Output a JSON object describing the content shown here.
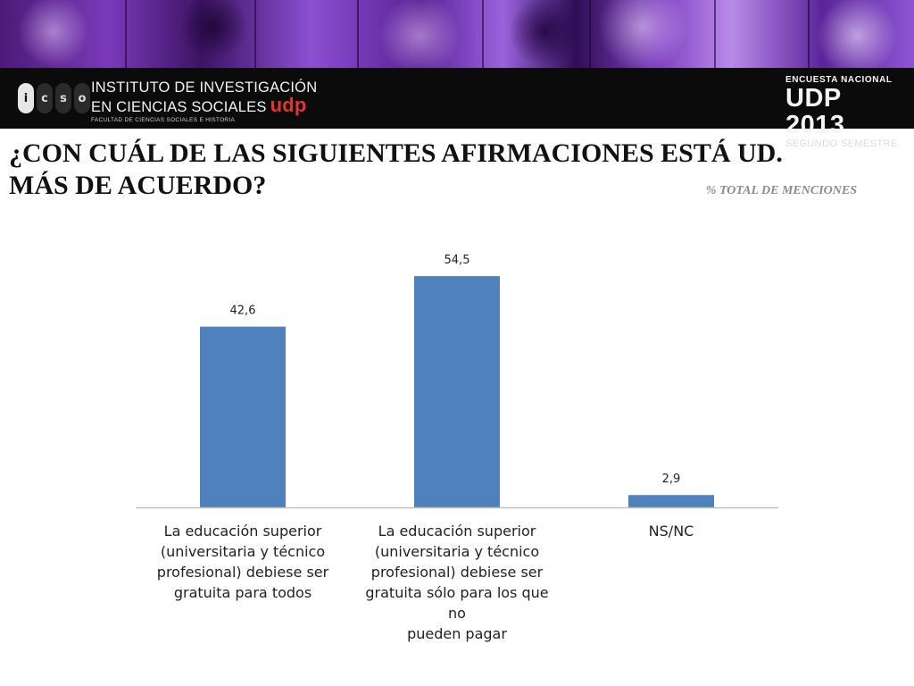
{
  "banner_icon": "photo-collage-banner",
  "logo": {
    "letters": [
      "i",
      "c",
      "s",
      "o"
    ],
    "name_line1": "INSTITUTO DE INVESTIGACIÓN",
    "name_line2": "EN CIENCIAS SOCIALES",
    "name_udp": "udp",
    "faculty": "FACULTAD DE CIENCIAS SOCIALES E HISTORIA"
  },
  "survey": {
    "top": "ENCUESTA NACIONAL",
    "main": "UDP 2013",
    "sub": "SEGUNDO SEMESTRE"
  },
  "title_line1": "¿CON CUÁL DE LAS SIGUIENTES AFIRMACIONES ESTÁ UD.",
  "title_line2": "MÁS DE ACUERDO?",
  "subtitle": "% TOTAL DE MENCIONES",
  "colors": {
    "bar": "#4f81bd",
    "accent": "#e3342f",
    "banner": "#7a3ab8"
  },
  "chart_data": {
    "type": "bar",
    "categories": [
      "La educación superior (universitaria y técnico profesional) debiese ser gratuita para todos",
      "La educación superior (universitaria y técnico profesional) debiese ser gratuita sólo para los que no pueden pagar",
      "NS/NC"
    ],
    "category_lines": [
      [
        "La educación superior",
        "(universitaria y técnico",
        "profesional) debiese ser",
        "gratuita para todos"
      ],
      [
        "La educación superior",
        "(universitaria y técnico",
        "profesional) debiese ser",
        "gratuita sólo para los que no",
        "pueden pagar"
      ],
      [
        "NS/NC"
      ]
    ],
    "values": [
      42.6,
      54.5,
      2.9
    ],
    "value_labels": [
      "42,6",
      "54,5",
      "2,9"
    ],
    "ylim": [
      0,
      60
    ],
    "grid": false,
    "legend": "none",
    "xlabel": "",
    "ylabel": ""
  }
}
